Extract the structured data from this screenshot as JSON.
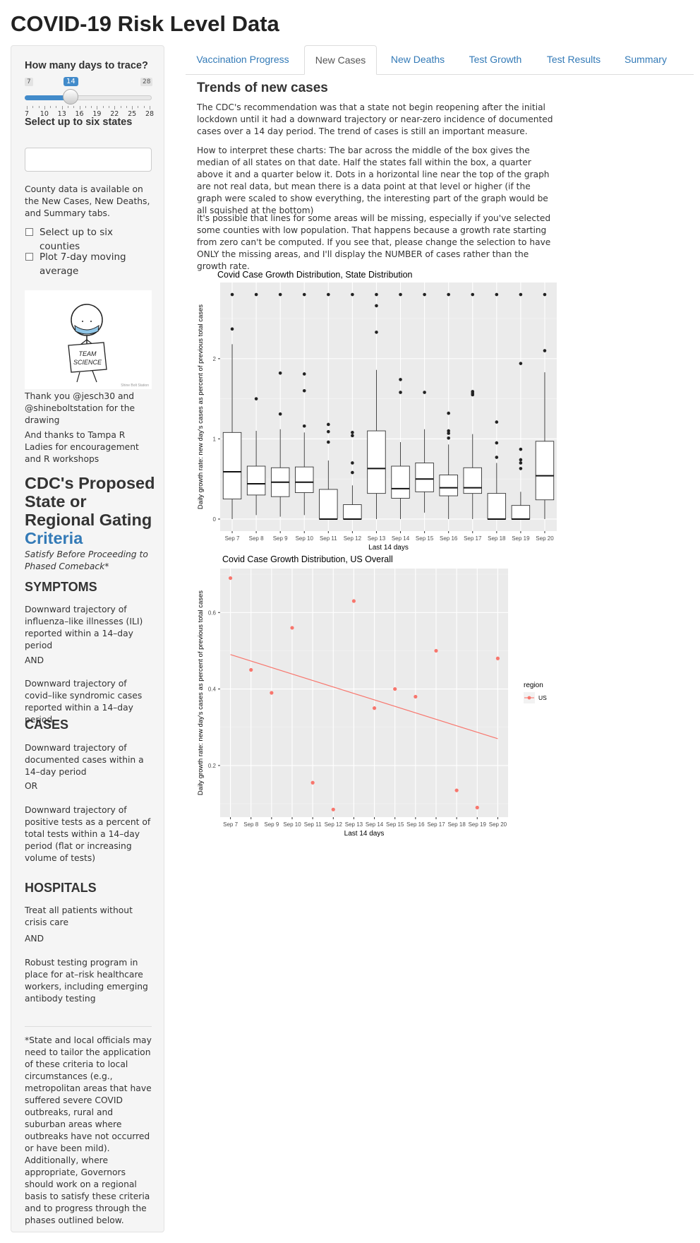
{
  "app": {
    "title": "COVID-19 Risk Level Data"
  },
  "sidebar": {
    "days_label": "How many days to trace?",
    "slider": {
      "min": "7",
      "max": "28",
      "value": "14",
      "ticks": [
        "7",
        "10",
        "13",
        "16",
        "19",
        "22",
        "25",
        "28"
      ]
    },
    "states_label": "Select up to six states",
    "states_placeholder": "",
    "county_note": "County data is available on the New Cases, New Deaths, and Summary tabs.",
    "counties_checkbox": "Select up to six counties",
    "moving_avg_checkbox": "Plot 7-day moving average",
    "drawing": {
      "sign_line1": "TEAM",
      "sign_line2": "SCIENCE",
      "credit": "Shine Bolt Station"
    },
    "thanks1": "Thank you @jesch30 and @shineboltstation for the drawing",
    "thanks2": "And thanks to Tampa R Ladies for encouragement and R workshops",
    "cdc_heading": "CDC's Proposed State or Regional Gating",
    "cdc_heading_link": "Criteria",
    "cdc_subtitle": "Satisfy Before Proceeding to Phased Comeback*",
    "symptoms_head": "SYMPTOMS",
    "symptoms1": "Downward trajectory of influenza–like illnesses (ILI) reported within a 14–day period",
    "and1": "AND",
    "symptoms2": "Downward trajectory of covid–like syndromic cases reported within a 14–day period",
    "cases_head": "CASES",
    "cases1": "Downward trajectory of documented cases within a 14–day period",
    "or1": "OR",
    "cases2": "Downward trajectory of positive tests as a percent of total tests within a 14–day period (flat or increasing volume of tests)",
    "hospitals_head": "HOSPITALS",
    "hosp1": "Treat all patients without crisis care",
    "and2": "AND",
    "hosp2": "Robust testing program in place for at–risk healthcare workers, including emerging antibody testing",
    "footnote": "*State and local officials may need to tailor the application of these criteria to local circumstances (e.g., metropolitan areas that have suffered severe COVID outbreaks, rural and suburban areas where outbreaks have not occurred or have been mild). Additionally, where appropriate, Governors should work on a regional basis to satisfy these criteria and to progress through the phases outlined below."
  },
  "tabs": [
    {
      "label": "Vaccination Progress",
      "active": false
    },
    {
      "label": "New Cases",
      "active": true
    },
    {
      "label": "New Deaths",
      "active": false
    },
    {
      "label": "Test Growth",
      "active": false
    },
    {
      "label": "Test Results",
      "active": false
    },
    {
      "label": "Summary",
      "active": false
    }
  ],
  "main": {
    "title": "Trends of new cases",
    "p1": "The CDC's recommendation was that a state not begin reopening after the initial lockdown until it had a downward trajectory or near-zero incidence of documented cases over a 14 day period. The trend of cases is still an important measure.",
    "p2": "How to interpret these charts: The bar across the middle of the box gives the median of all states on that date. Half the states fall within the box, a quarter above it and a quarter below it. Dots in a horizontal line near the top of the graph are not real data, but mean there is a data point at that level or higher (if the graph were scaled to show everything, the interesting part of the graph would be all squished at the bottom)",
    "p3": "It's possible that lines for some areas will be missing, especially if you've selected some counties with low population. That happens because a growth rate starting from zero can't be computed. If you see that, please change the selection to have ONLY the missing areas, and I'll display the NUMBER of cases rather than the growth rate."
  },
  "chart_data": [
    {
      "type": "box",
      "title": "Covid Case Growth Distribution, State Distribution",
      "xlabel": "Last 14 days",
      "ylabel": "Daily growth rate: new day's cases as percent of previous total cases",
      "ylim": [
        -0.15,
        2.95
      ],
      "yticks": [
        0,
        1,
        2
      ],
      "categories": [
        "Sep 7",
        "Sep 8",
        "Sep 9",
        "Sep 10",
        "Sep 11",
        "Sep 12",
        "Sep 13",
        "Sep 14",
        "Sep 15",
        "Sep 16",
        "Sep 17",
        "Sep 18",
        "Sep 19",
        "Sep 20"
      ],
      "boxes": [
        {
          "low": 0,
          "q1": 0.25,
          "median": 0.59,
          "q3": 1.08,
          "high": 2.18,
          "outliers": [
            2.37,
            2.8
          ]
        },
        {
          "low": 0.05,
          "q1": 0.3,
          "median": 0.44,
          "q3": 0.66,
          "high": 1.1,
          "outliers": [
            1.5,
            2.8
          ]
        },
        {
          "low": 0.03,
          "q1": 0.28,
          "median": 0.46,
          "q3": 0.64,
          "high": 1.12,
          "outliers": [
            1.31,
            1.82,
            2.8
          ]
        },
        {
          "low": 0.05,
          "q1": 0.33,
          "median": 0.46,
          "q3": 0.65,
          "high": 1.08,
          "outliers": [
            1.16,
            1.6,
            1.81,
            2.8
          ]
        },
        {
          "low": 0,
          "q1": 0,
          "median": 0,
          "q3": 0.37,
          "high": 0.73,
          "outliers": [
            0.96,
            1.09,
            1.18,
            2.8
          ]
        },
        {
          "low": 0,
          "q1": 0,
          "median": 0,
          "q3": 0.18,
          "high": 0.42,
          "outliers": [
            0.58,
            0.7,
            1.04,
            1.08,
            2.8
          ]
        },
        {
          "low": 0,
          "q1": 0.32,
          "median": 0.63,
          "q3": 1.1,
          "high": 1.86,
          "outliers": [
            2.33,
            2.66,
            2.8
          ]
        },
        {
          "low": 0,
          "q1": 0.26,
          "median": 0.38,
          "q3": 0.66,
          "high": 0.96,
          "outliers": [
            1.58,
            1.74,
            2.8
          ]
        },
        {
          "low": 0.08,
          "q1": 0.34,
          "median": 0.5,
          "q3": 0.7,
          "high": 1.12,
          "outliers": [
            1.58,
            2.8
          ]
        },
        {
          "low": 0,
          "q1": 0.29,
          "median": 0.39,
          "q3": 0.55,
          "high": 0.93,
          "outliers": [
            1.01,
            1.07,
            1.1,
            1.32,
            2.8
          ]
        },
        {
          "low": 0,
          "q1": 0.32,
          "median": 0.39,
          "q3": 0.64,
          "high": 1.06,
          "outliers": [
            1.55,
            1.57,
            1.59,
            2.8
          ]
        },
        {
          "low": 0,
          "q1": 0,
          "median": 0,
          "q3": 0.32,
          "high": 0.7,
          "outliers": [
            0.77,
            0.95,
            1.21,
            2.8
          ]
        },
        {
          "low": 0,
          "q1": 0,
          "median": 0,
          "q3": 0.17,
          "high": 0.34,
          "outliers": [
            0.63,
            0.7,
            0.74,
            0.87,
            1.94,
            2.8
          ]
        },
        {
          "low": 0,
          "q1": 0.24,
          "median": 0.54,
          "q3": 0.97,
          "high": 1.83,
          "outliers": [
            2.1,
            2.8
          ]
        }
      ]
    },
    {
      "type": "scatter",
      "title": "Covid Case Growth Distribution, US Overall",
      "xlabel": "Last 14 days",
      "ylabel": "Daily growth rate: new day's cases as percent of previous total cases",
      "ylim": [
        0.065,
        0.715
      ],
      "yticks": [
        0.2,
        0.4,
        0.6
      ],
      "categories": [
        "Sep 7",
        "Sep 8",
        "Sep 9",
        "Sep 10",
        "Sep 11",
        "Sep 12",
        "Sep 13",
        "Sep 14",
        "Sep 15",
        "Sep 16",
        "Sep 17",
        "Sep 18",
        "Sep 19",
        "Sep 20"
      ],
      "legend": {
        "title": "region",
        "position": "right"
      },
      "series": [
        {
          "name": "US",
          "color": "#F8766D",
          "values": [
            0.69,
            0.45,
            0.39,
            0.56,
            0.155,
            0.085,
            0.63,
            0.35,
            0.4,
            0.38,
            0.5,
            0.135,
            0.09,
            0.48
          ],
          "trend": [
            0.49,
            0.27
          ]
        }
      ]
    }
  ]
}
